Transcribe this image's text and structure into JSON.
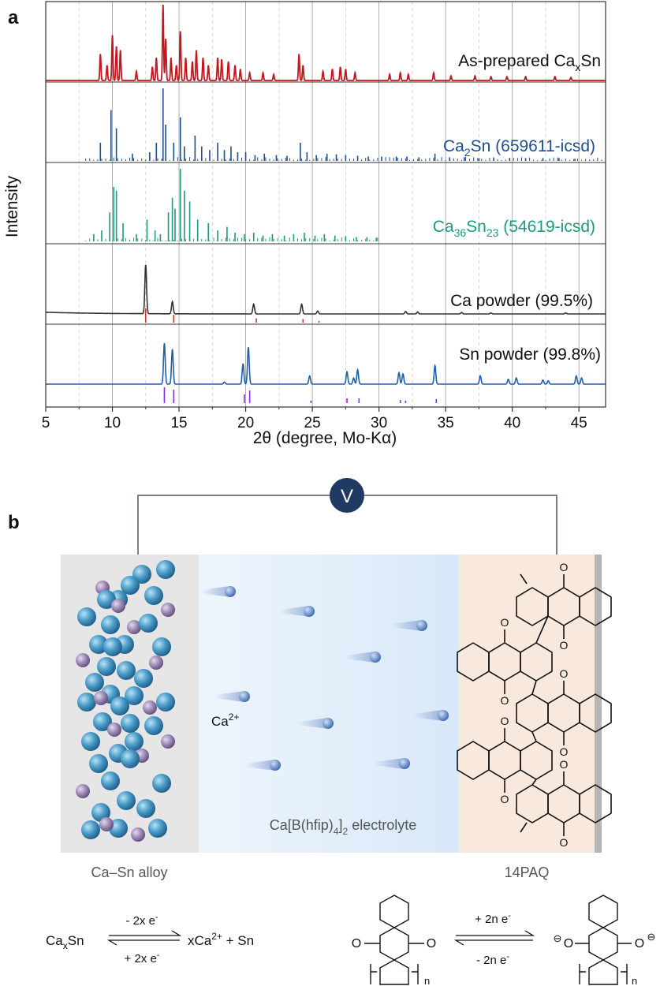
{
  "panel_a": {
    "label": "a",
    "ylabel": "Intensity",
    "xlabel": "2θ (degree, Mo-Kα)",
    "xticks": [
      "5",
      "10",
      "15",
      "20",
      "25",
      "30",
      "35",
      "40",
      "45"
    ]
  },
  "chart_data": {
    "type": "line",
    "title": "",
    "xlabel": "2θ (degree, Mo-Kα)",
    "ylabel": "Intensity",
    "xlim": [
      5,
      47
    ],
    "grid": "dashed vertical gridlines",
    "series": [
      {
        "name": "As-prepared Ca_xSn",
        "label_main": "As-prepared Ca",
        "label_sub": "x",
        "label_tail": "Sn",
        "color": "#c4161c",
        "style": "pattern",
        "peaks": [
          [
            9.1,
            0.35
          ],
          [
            9.6,
            0.2
          ],
          [
            10.0,
            0.6
          ],
          [
            10.3,
            0.45
          ],
          [
            10.6,
            0.4
          ],
          [
            11.8,
            0.12
          ],
          [
            13.0,
            0.18
          ],
          [
            13.3,
            0.3
          ],
          [
            13.8,
            1.0
          ],
          [
            14.0,
            0.55
          ],
          [
            14.4,
            0.3
          ],
          [
            14.8,
            0.2
          ],
          [
            15.1,
            0.65
          ],
          [
            15.5,
            0.3
          ],
          [
            16.0,
            0.25
          ],
          [
            16.3,
            0.4
          ],
          [
            16.8,
            0.3
          ],
          [
            17.2,
            0.2
          ],
          [
            17.9,
            0.3
          ],
          [
            18.2,
            0.28
          ],
          [
            18.7,
            0.25
          ],
          [
            19.2,
            0.2
          ],
          [
            19.6,
            0.15
          ],
          [
            20.3,
            0.1
          ],
          [
            21.3,
            0.1
          ],
          [
            22.1,
            0.08
          ],
          [
            24.0,
            0.35
          ],
          [
            24.3,
            0.2
          ],
          [
            25.8,
            0.12
          ],
          [
            26.5,
            0.15
          ],
          [
            27.1,
            0.18
          ],
          [
            27.5,
            0.15
          ],
          [
            28.2,
            0.1
          ],
          [
            30.8,
            0.08
          ],
          [
            31.6,
            0.1
          ],
          [
            32.2,
            0.08
          ],
          [
            34.1,
            0.1
          ],
          [
            35.4,
            0.06
          ],
          [
            37.2,
            0.06
          ],
          [
            38.4,
            0.05
          ],
          [
            39.6,
            0.05
          ],
          [
            41.0,
            0.05
          ],
          [
            43.2,
            0.05
          ],
          [
            44.4,
            0.04
          ]
        ]
      },
      {
        "name": "Ca2Sn (659611-icsd)",
        "label_main": "Ca",
        "label_sub": "2",
        "label_tail": "Sn (659611-icsd)",
        "color": "#1f4e8c",
        "style": "sticks",
        "peaks": [
          [
            9.1,
            0.25
          ],
          [
            9.9,
            0.7
          ],
          [
            10.3,
            0.45
          ],
          [
            11.5,
            0.1
          ],
          [
            12.8,
            0.12
          ],
          [
            13.3,
            0.25
          ],
          [
            13.8,
            1.0
          ],
          [
            14.0,
            0.5
          ],
          [
            14.6,
            0.25
          ],
          [
            15.1,
            0.6
          ],
          [
            15.4,
            0.2
          ],
          [
            16.2,
            0.35
          ],
          [
            16.7,
            0.2
          ],
          [
            17.3,
            0.15
          ],
          [
            17.9,
            0.25
          ],
          [
            18.4,
            0.15
          ],
          [
            18.9,
            0.2
          ],
          [
            19.4,
            0.12
          ],
          [
            20.0,
            0.12
          ],
          [
            20.7,
            0.08
          ],
          [
            21.4,
            0.1
          ],
          [
            22.3,
            0.08
          ],
          [
            23.1,
            0.07
          ],
          [
            24.1,
            0.25
          ],
          [
            24.6,
            0.12
          ],
          [
            25.3,
            0.08
          ],
          [
            26.1,
            0.1
          ],
          [
            26.8,
            0.09
          ],
          [
            27.5,
            0.08
          ],
          [
            28.4,
            0.07
          ],
          [
            29.2,
            0.06
          ],
          [
            30.2,
            0.06
          ],
          [
            31.3,
            0.06
          ],
          [
            32.1,
            0.06
          ],
          [
            33.0,
            0.05
          ],
          [
            34.2,
            0.1
          ],
          [
            35.3,
            0.05
          ],
          [
            36.4,
            0.05
          ],
          [
            37.5,
            0.04
          ],
          [
            38.6,
            0.04
          ],
          [
            39.8,
            0.04
          ],
          [
            41.0,
            0.04
          ],
          [
            42.3,
            0.04
          ],
          [
            43.5,
            0.04
          ],
          [
            44.7,
            0.03
          ]
        ]
      },
      {
        "name": "Ca36Sn23 (54619-icsd)",
        "label_main": "Ca",
        "label_sub": "36",
        "label_tail": "Sn",
        "label_sub2": "23",
        "label_tail2": " (54619-icsd)",
        "color": "#1a9a7e",
        "style": "sticks",
        "peaks": [
          [
            8.6,
            0.1
          ],
          [
            9.2,
            0.15
          ],
          [
            9.8,
            0.4
          ],
          [
            10.1,
            0.75
          ],
          [
            10.3,
            0.7
          ],
          [
            10.8,
            0.25
          ],
          [
            11.8,
            0.1
          ],
          [
            12.6,
            0.3
          ],
          [
            13.2,
            0.15
          ],
          [
            13.6,
            0.1
          ],
          [
            14.2,
            0.4
          ],
          [
            14.5,
            0.6
          ],
          [
            14.7,
            0.45
          ],
          [
            15.1,
            1.0
          ],
          [
            15.4,
            0.7
          ],
          [
            15.8,
            0.55
          ],
          [
            16.4,
            0.3
          ],
          [
            17.2,
            0.25
          ],
          [
            17.9,
            0.15
          ],
          [
            18.6,
            0.2
          ],
          [
            19.2,
            0.12
          ],
          [
            19.9,
            0.1
          ],
          [
            20.6,
            0.12
          ],
          [
            21.3,
            0.08
          ],
          [
            22.0,
            0.1
          ],
          [
            22.9,
            0.08
          ],
          [
            23.6,
            0.1
          ],
          [
            24.4,
            0.12
          ],
          [
            25.2,
            0.08
          ],
          [
            25.9,
            0.1
          ],
          [
            26.7,
            0.08
          ],
          [
            27.5,
            0.07
          ],
          [
            28.3,
            0.06
          ],
          [
            29.1,
            0.06
          ],
          [
            29.8,
            0.05
          ]
        ]
      },
      {
        "name": "Ca powder (99.5%)",
        "label_main": "Ca powder (99.5%)",
        "color": "#333333",
        "style": "pattern",
        "peaks": [
          [
            12.5,
            1.0
          ],
          [
            14.5,
            0.25
          ],
          [
            20.6,
            0.2
          ],
          [
            24.2,
            0.2
          ],
          [
            25.4,
            0.06
          ],
          [
            32.0,
            0.05
          ],
          [
            32.9,
            0.04
          ],
          [
            36.2,
            0.03
          ],
          [
            38.4,
            0.02
          ],
          [
            44.0,
            0.02
          ]
        ],
        "reference_sticks": [
          [
            12.5,
            1.0
          ],
          [
            14.6,
            0.55
          ],
          [
            20.8,
            0.3
          ],
          [
            24.3,
            0.25
          ],
          [
            25.5,
            0.12
          ]
        ],
        "reference_color": "#d9312b"
      },
      {
        "name": "Sn powder (99.8%)",
        "label_main": "Sn powder (99.8%)",
        "color": "#1d5fa8",
        "style": "pattern",
        "peaks": [
          [
            13.9,
            1.0
          ],
          [
            14.5,
            0.85
          ],
          [
            18.4,
            0.05
          ],
          [
            19.8,
            0.5
          ],
          [
            20.2,
            0.9
          ],
          [
            24.8,
            0.2
          ],
          [
            27.6,
            0.3
          ],
          [
            28.1,
            0.15
          ],
          [
            28.4,
            0.35
          ],
          [
            31.5,
            0.28
          ],
          [
            31.8,
            0.25
          ],
          [
            34.2,
            0.45
          ],
          [
            37.6,
            0.2
          ],
          [
            39.7,
            0.12
          ],
          [
            40.3,
            0.15
          ],
          [
            42.3,
            0.1
          ],
          [
            42.7,
            0.08
          ],
          [
            44.8,
            0.2
          ],
          [
            45.2,
            0.15
          ]
        ],
        "reference_sticks": [
          [
            13.9,
            1.0
          ],
          [
            14.6,
            0.85
          ],
          [
            19.9,
            0.55
          ],
          [
            20.3,
            0.8
          ],
          [
            24.9,
            0.15
          ],
          [
            27.6,
            0.3
          ],
          [
            28.5,
            0.3
          ],
          [
            31.6,
            0.2
          ],
          [
            32.0,
            0.15
          ],
          [
            34.3,
            0.25
          ]
        ],
        "reference_color": "#8a2be2"
      }
    ]
  },
  "panel_b": {
    "label": "b",
    "voltmeter": "V",
    "ion_label": "Ca",
    "ion_charge": "2+",
    "electrolyte_main": "Ca[B(hfip)",
    "electrolyte_sub": "4",
    "electrolyte_tail": "]",
    "electrolyte_sub2": "2",
    "electrolyte_tail2": " electrolyte",
    "anode_label": "Ca–Sn alloy",
    "cathode_label": "14PAQ",
    "atom_color_primary": "#4a9bc8",
    "atom_color_secondary": "#a08db8",
    "left_eq": {
      "reactant_main": "Ca",
      "reactant_sub": "x",
      "reactant_tail": "Sn",
      "forward": "- 2x e",
      "backward": "+ 2x e",
      "electron_sup": "-",
      "product_main": "xCa",
      "product_sup": "2+",
      "product_tail": " + Sn"
    },
    "right_eq": {
      "forward": "+ 2n e",
      "backward": "- 2n e",
      "electron_sup": "-",
      "oxygen": "O",
      "oxide_sup": "⊖",
      "subscript_n": "n"
    }
  }
}
